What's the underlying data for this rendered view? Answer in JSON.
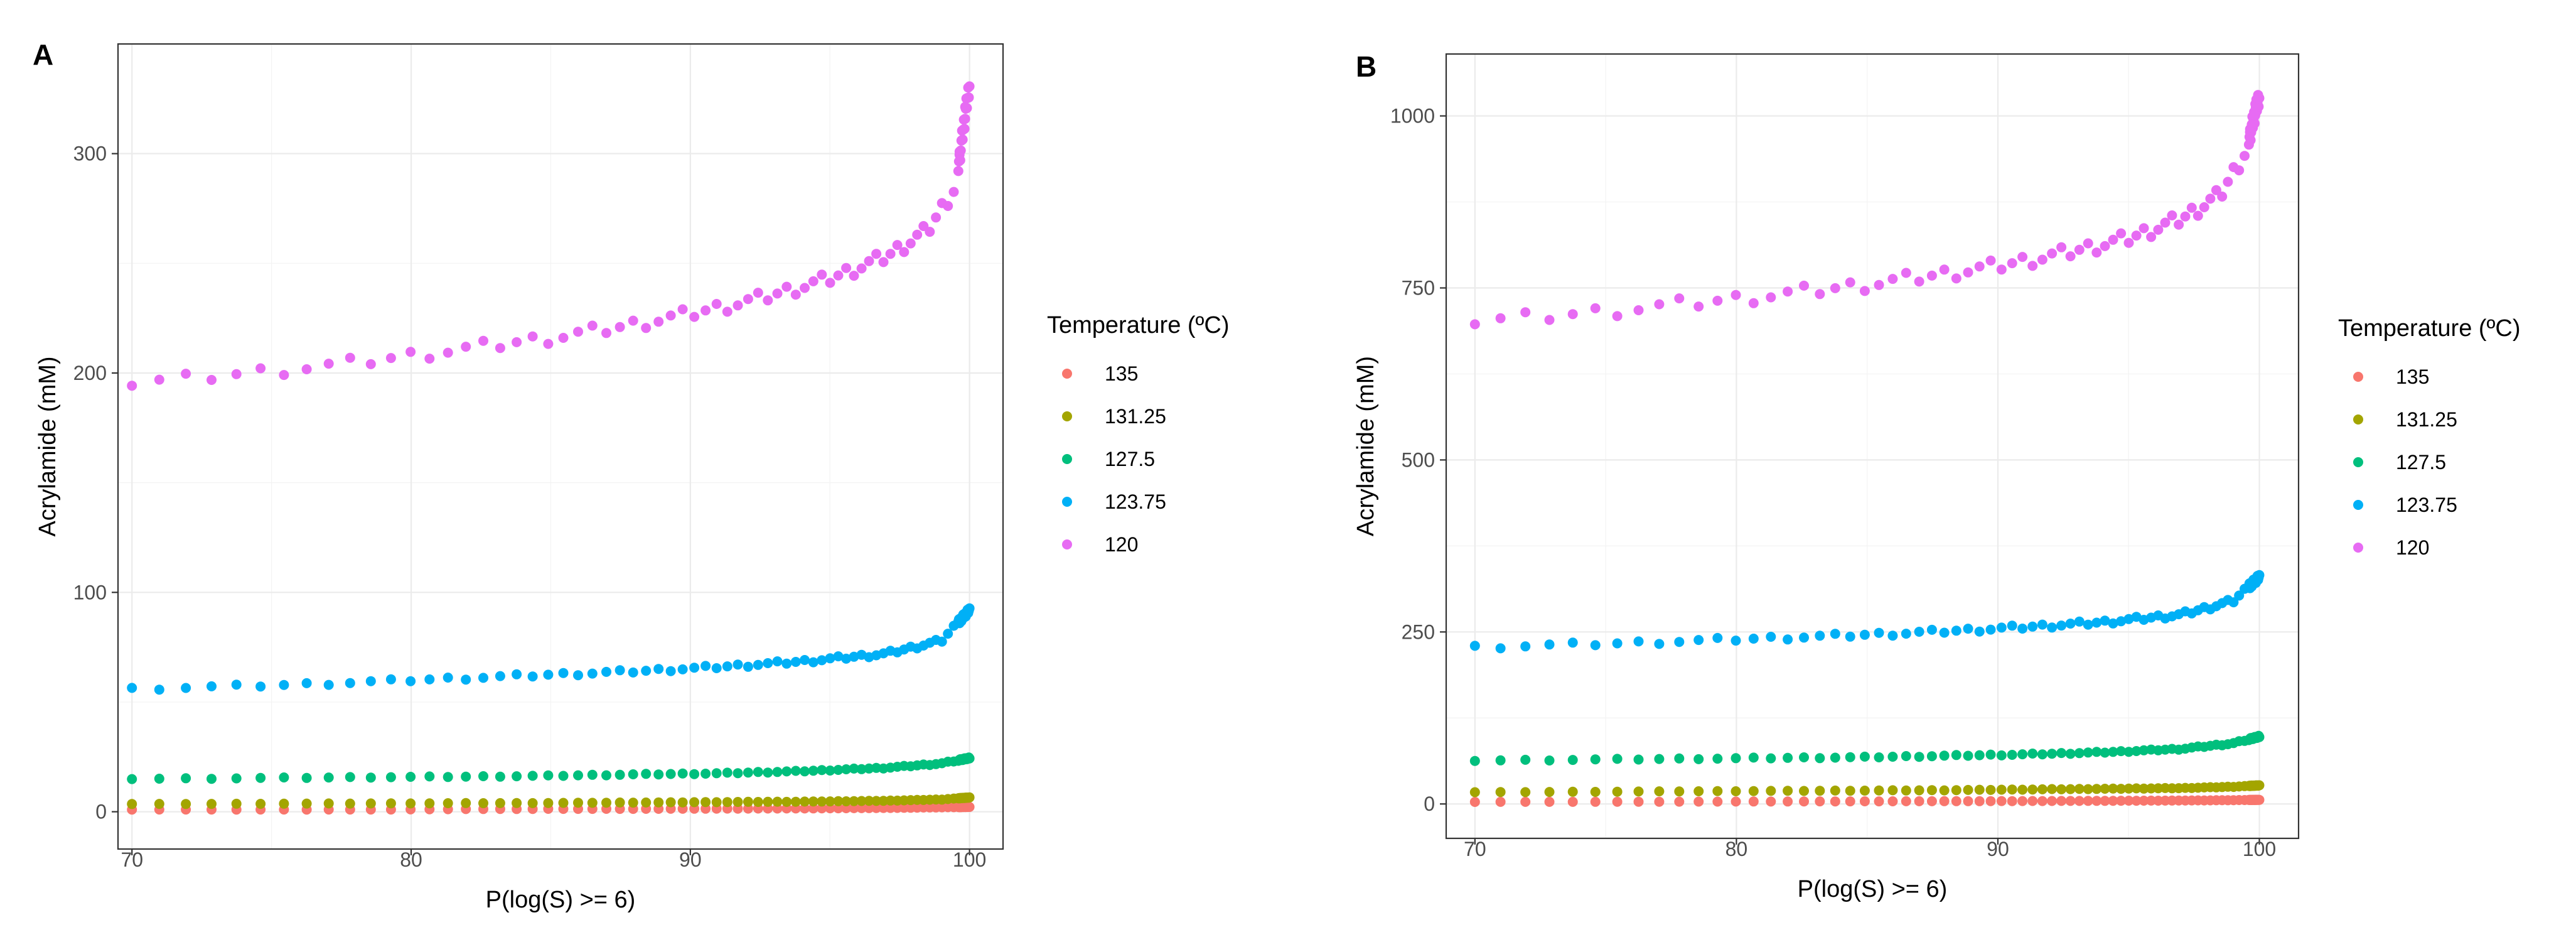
{
  "legend": {
    "title": "Temperature (ºC)",
    "entries": [
      {
        "label": "135",
        "color": "#F8766D"
      },
      {
        "label": "131.25",
        "color": "#A3A500"
      },
      {
        "label": "127.5",
        "color": "#00BF7D"
      },
      {
        "label": "123.75",
        "color": "#00B0F6"
      },
      {
        "label": "120",
        "color": "#E76BF3"
      }
    ]
  },
  "chart_data": [
    {
      "panel": "A",
      "type": "scatter",
      "xlabel": "P(log(S) >= 6)",
      "ylabel": "Acrylamide (mM)",
      "xlim": [
        69.5,
        101.2
      ],
      "ylim": [
        -17,
        350
      ],
      "xticks": [
        70,
        80,
        90,
        100
      ],
      "yticks": [
        0,
        100,
        200,
        300
      ],
      "series": [
        {
          "name": "135",
          "x": [
            70,
            73,
            76,
            79,
            82,
            85,
            88,
            91,
            94,
            97,
            99,
            100
          ],
          "y": [
            1,
            1,
            1,
            1,
            1.2,
            1.3,
            1.3,
            1.4,
            1.5,
            1.7,
            2,
            2.2
          ]
        },
        {
          "name": "131.25",
          "x": [
            70,
            73,
            76,
            79,
            82,
            85,
            88,
            91,
            94,
            97,
            99,
            100
          ],
          "y": [
            3.5,
            3.6,
            3.7,
            3.8,
            3.9,
            4,
            4.2,
            4.4,
            4.6,
            5,
            5.6,
            6.5
          ]
        },
        {
          "name": "127.5",
          "x": [
            70,
            73,
            76,
            79,
            82,
            85,
            88,
            91,
            94,
            97,
            99,
            100
          ],
          "y": [
            15,
            15.2,
            15.5,
            15.8,
            16,
            16.4,
            17,
            17.5,
            18.5,
            20,
            22,
            24.5
          ]
        },
        {
          "name": "123.75",
          "x": [
            70,
            73,
            76,
            79,
            82,
            85,
            88,
            91,
            94,
            97,
            99,
            100
          ],
          "y": [
            56,
            57,
            58,
            59.5,
            61,
            62.5,
            64,
            66,
            68.5,
            72,
            78,
            92
          ]
        },
        {
          "name": "120",
          "x": [
            70,
            72.5,
            75,
            77.5,
            80,
            82.5,
            85,
            87.5,
            90,
            92.5,
            95,
            97,
            98.5,
            99.5,
            100
          ],
          "y": [
            195,
            198,
            201,
            204,
            208,
            212,
            216,
            221,
            227,
            234,
            243,
            253,
            265,
            285,
            332
          ]
        }
      ]
    },
    {
      "panel": "B",
      "type": "scatter",
      "xlabel": "P(log(S) >= 6)",
      "ylabel": "Acrylamide (mM)",
      "xlim": [
        68.9,
        101.5
      ],
      "ylim": [
        -50,
        1090
      ],
      "xticks": [
        70,
        80,
        90,
        100
      ],
      "yticks": [
        0,
        250,
        500,
        750,
        1000
      ],
      "series": [
        {
          "name": "135",
          "x": [
            70,
            73,
            76,
            79,
            82,
            85,
            88,
            91,
            94,
            97,
            99,
            100
          ],
          "y": [
            3,
            3,
            3.2,
            3.4,
            3.6,
            3.8,
            4,
            4.2,
            4.5,
            5,
            5.5,
            6
          ]
        },
        {
          "name": "131.25",
          "x": [
            70,
            73,
            76,
            79,
            82,
            85,
            88,
            91,
            94,
            97,
            99,
            100
          ],
          "y": [
            17,
            17.5,
            18,
            18.5,
            19,
            19.5,
            20,
            21,
            22,
            23,
            25,
            27
          ]
        },
        {
          "name": "127.5",
          "x": [
            70,
            73,
            76,
            79,
            82,
            85,
            88,
            91,
            94,
            97,
            99,
            100
          ],
          "y": [
            63,
            64,
            65,
            66,
            67,
            68,
            70,
            72,
            75,
            80,
            88,
            98
          ]
        },
        {
          "name": "123.75",
          "x": [
            70,
            73,
            76,
            79,
            82,
            85,
            88,
            91,
            94,
            97,
            99,
            100
          ],
          "y": [
            228,
            231,
            234,
            238,
            242,
            246,
            251,
            257,
            264,
            275,
            295,
            330
          ]
        },
        {
          "name": "120",
          "x": [
            70,
            72.5,
            75,
            77.5,
            80,
            82.5,
            85,
            87.5,
            90,
            92.5,
            95,
            97,
            98.5,
            99.5,
            100
          ],
          "y": [
            700,
            708,
            716,
            725,
            734,
            744,
            755,
            768,
            782,
            800,
            822,
            850,
            885,
            950,
            1030
          ]
        }
      ]
    }
  ]
}
